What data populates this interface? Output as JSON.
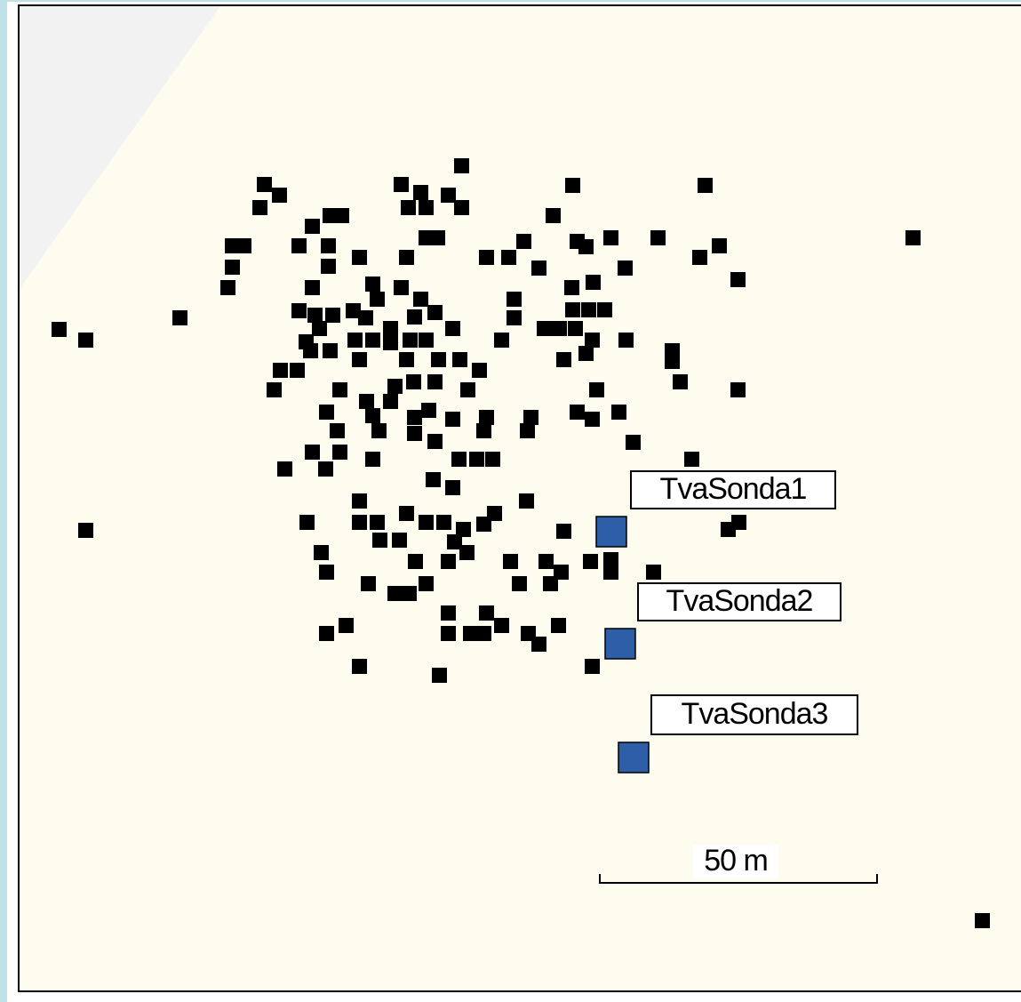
{
  "probes": [
    {
      "label": "TvaSonda1"
    },
    {
      "label": "TvaSonda2"
    },
    {
      "label": "TvaSonda3"
    }
  ],
  "scale_bar": {
    "label": "50 m"
  }
}
